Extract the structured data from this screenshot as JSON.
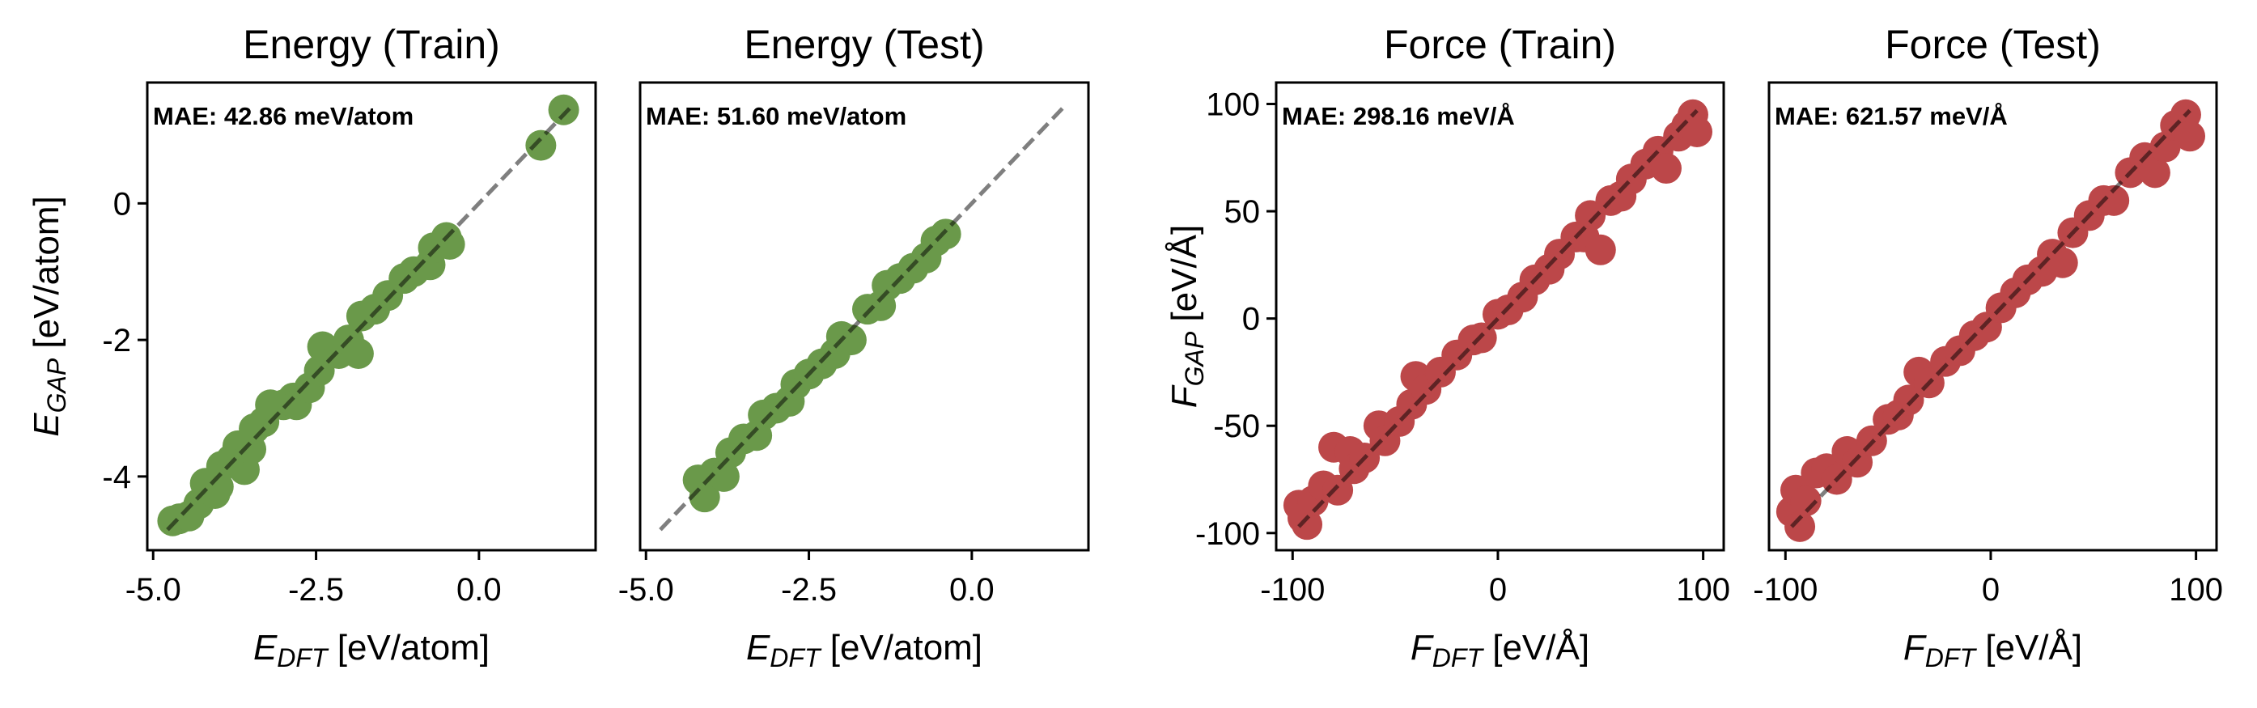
{
  "chart_data": [
    {
      "type": "scatter",
      "title": "Energy (Train)",
      "annotation": "MAE: 42.86 meV/atom",
      "xlabel": {
        "symbol": "E",
        "sub": "DFT",
        "unit": " [eV/atom]"
      },
      "ylabel": {
        "symbol": "E",
        "sub": "GAP",
        "unit": " [eV/atom]"
      },
      "xlim": [
        -5.09,
        1.79
      ],
      "ylim": [
        -5.08,
        1.77
      ],
      "xticks": [
        {
          "v": -5.0,
          "label": "-5.0"
        },
        {
          "v": -2.5,
          "label": "-2.5"
        },
        {
          "v": 0.0,
          "label": "0.0"
        }
      ],
      "yticks": [
        {
          "v": 0,
          "label": "0"
        },
        {
          "v": -2,
          "label": "-2"
        },
        {
          "v": -4,
          "label": "-4"
        }
      ],
      "diagonal": [
        -4.78,
        1.39
      ],
      "color": "#6a994a",
      "points": [
        [
          -4.7,
          -4.65
        ],
        [
          -4.6,
          -4.62
        ],
        [
          -4.45,
          -4.58
        ],
        [
          -4.3,
          -4.4
        ],
        [
          -4.2,
          -4.1
        ],
        [
          -4.05,
          -4.25
        ],
        [
          -4.0,
          -4.15
        ],
        [
          -3.95,
          -3.85
        ],
        [
          -3.8,
          -3.75
        ],
        [
          -3.7,
          -3.55
        ],
        [
          -3.6,
          -3.9
        ],
        [
          -3.5,
          -3.6
        ],
        [
          -3.45,
          -3.3
        ],
        [
          -3.3,
          -3.2
        ],
        [
          -3.2,
          -2.95
        ],
        [
          -3.0,
          -2.95
        ],
        [
          -2.85,
          -2.85
        ],
        [
          -2.8,
          -2.95
        ],
        [
          -2.6,
          -2.7
        ],
        [
          -2.45,
          -2.45
        ],
        [
          -2.4,
          -2.1
        ],
        [
          -2.15,
          -2.2
        ],
        [
          -2.0,
          -2.0
        ],
        [
          -1.8,
          -1.65
        ],
        [
          -1.85,
          -2.2
        ],
        [
          -1.6,
          -1.55
        ],
        [
          -1.4,
          -1.35
        ],
        [
          -1.15,
          -1.1
        ],
        [
          -1.0,
          -1.0
        ],
        [
          -0.75,
          -0.9
        ],
        [
          -0.7,
          -0.65
        ],
        [
          -0.5,
          -0.5
        ],
        [
          -0.45,
          -0.6
        ],
        [
          0.95,
          0.85
        ],
        [
          1.3,
          1.37
        ]
      ]
    },
    {
      "type": "scatter",
      "title": "Energy (Test)",
      "annotation": "MAE: 51.60 meV/atom",
      "xlabel": {
        "symbol": "E",
        "sub": "DFT",
        "unit": " [eV/atom]"
      },
      "xlim": [
        -5.09,
        1.79
      ],
      "ylim": [
        -5.08,
        1.77
      ],
      "xticks": [
        {
          "v": -5.0,
          "label": "-5.0"
        },
        {
          "v": -2.5,
          "label": "-2.5"
        },
        {
          "v": 0.0,
          "label": "0.0"
        }
      ],
      "yticks": [],
      "diagonal": [
        -4.78,
        1.39
      ],
      "color": "#6a994a",
      "points": [
        [
          -4.2,
          -4.05
        ],
        [
          -4.1,
          -4.3
        ],
        [
          -3.95,
          -3.95
        ],
        [
          -3.8,
          -4.0
        ],
        [
          -3.7,
          -3.65
        ],
        [
          -3.5,
          -3.45
        ],
        [
          -3.3,
          -3.4
        ],
        [
          -3.2,
          -3.1
        ],
        [
          -3.0,
          -3.0
        ],
        [
          -2.8,
          -2.9
        ],
        [
          -2.7,
          -2.65
        ],
        [
          -2.5,
          -2.5
        ],
        [
          -2.3,
          -2.35
        ],
        [
          -2.1,
          -2.2
        ],
        [
          -2.0,
          -1.95
        ],
        [
          -1.85,
          -2.0
        ],
        [
          -1.6,
          -1.55
        ],
        [
          -1.4,
          -1.5
        ],
        [
          -1.3,
          -1.2
        ],
        [
          -1.1,
          -1.1
        ],
        [
          -0.9,
          -0.95
        ],
        [
          -0.7,
          -0.8
        ],
        [
          -0.55,
          -0.55
        ],
        [
          -0.4,
          -0.45
        ]
      ]
    },
    {
      "type": "scatter",
      "title": "Force (Train)",
      "annotation": "MAE: 298.16 meV/Å",
      "xlabel": {
        "symbol": "F",
        "sub": "DFT",
        "unit": " [eV/Å]"
      },
      "ylabel": {
        "symbol": "F",
        "sub": "GAP",
        "unit": " [eV/Å]"
      },
      "xlim": [
        -108,
        110
      ],
      "ylim": [
        -108,
        110
      ],
      "xticks": [
        {
          "v": -100,
          "label": "-100"
        },
        {
          "v": 0,
          "label": "0"
        },
        {
          "v": 100,
          "label": "100"
        }
      ],
      "yticks": [
        {
          "v": 100,
          "label": "100"
        },
        {
          "v": 50,
          "label": "50"
        },
        {
          "v": 0,
          "label": "0"
        },
        {
          "v": -50,
          "label": "-50"
        },
        {
          "v": -100,
          "label": "-100"
        }
      ],
      "diagonal": [
        -97,
        97
      ],
      "color": "#bc4749",
      "points": [
        [
          -97,
          -87
        ],
        [
          -95,
          -93
        ],
        [
          -93,
          -96
        ],
        [
          -90,
          -85
        ],
        [
          -85,
          -78
        ],
        [
          -80,
          -60
        ],
        [
          -78,
          -80
        ],
        [
          -72,
          -62
        ],
        [
          -70,
          -70
        ],
        [
          -65,
          -65
        ],
        [
          -58,
          -50
        ],
        [
          -55,
          -57
        ],
        [
          -48,
          -48
        ],
        [
          -42,
          -40
        ],
        [
          -40,
          -27
        ],
        [
          -35,
          -33
        ],
        [
          -28,
          -25
        ],
        [
          -20,
          -17
        ],
        [
          -12,
          -10
        ],
        [
          -8,
          -9
        ],
        [
          0,
          2
        ],
        [
          5,
          4
        ],
        [
          12,
          10
        ],
        [
          18,
          18
        ],
        [
          25,
          23
        ],
        [
          30,
          30
        ],
        [
          38,
          38
        ],
        [
          42,
          38
        ],
        [
          45,
          48
        ],
        [
          50,
          32
        ],
        [
          55,
          55
        ],
        [
          60,
          57
        ],
        [
          65,
          65
        ],
        [
          72,
          72
        ],
        [
          78,
          78
        ],
        [
          82,
          70
        ],
        [
          88,
          85
        ],
        [
          92,
          90
        ],
        [
          95,
          95
        ],
        [
          97,
          87
        ]
      ]
    },
    {
      "type": "scatter",
      "title": "Force (Test)",
      "annotation": "MAE: 621.57 meV/Å",
      "xlabel": {
        "symbol": "F",
        "sub": "DFT",
        "unit": " [eV/Å]"
      },
      "xlim": [
        -108,
        110
      ],
      "ylim": [
        -108,
        110
      ],
      "xticks": [
        {
          "v": -100,
          "label": "-100"
        },
        {
          "v": 0,
          "label": "0"
        },
        {
          "v": 100,
          "label": "100"
        }
      ],
      "yticks": [],
      "diagonal": [
        -97,
        97
      ],
      "color": "#bc4749",
      "points": [
        [
          -97,
          -90
        ],
        [
          -95,
          -80
        ],
        [
          -93,
          -97
        ],
        [
          -90,
          -85
        ],
        [
          -85,
          -72
        ],
        [
          -80,
          -70
        ],
        [
          -75,
          -75
        ],
        [
          -70,
          -62
        ],
        [
          -65,
          -67
        ],
        [
          -58,
          -57
        ],
        [
          -50,
          -47
        ],
        [
          -45,
          -45
        ],
        [
          -40,
          -38
        ],
        [
          -35,
          -25
        ],
        [
          -30,
          -30
        ],
        [
          -22,
          -20
        ],
        [
          -15,
          -15
        ],
        [
          -8,
          -8
        ],
        [
          -2,
          -4
        ],
        [
          5,
          5
        ],
        [
          12,
          12
        ],
        [
          18,
          18
        ],
        [
          25,
          22
        ],
        [
          30,
          30
        ],
        [
          35,
          26
        ],
        [
          40,
          40
        ],
        [
          48,
          48
        ],
        [
          55,
          55
        ],
        [
          60,
          55
        ],
        [
          68,
          68
        ],
        [
          75,
          75
        ],
        [
          80,
          68
        ],
        [
          85,
          80
        ],
        [
          90,
          90
        ],
        [
          95,
          95
        ],
        [
          97,
          85
        ]
      ]
    }
  ]
}
